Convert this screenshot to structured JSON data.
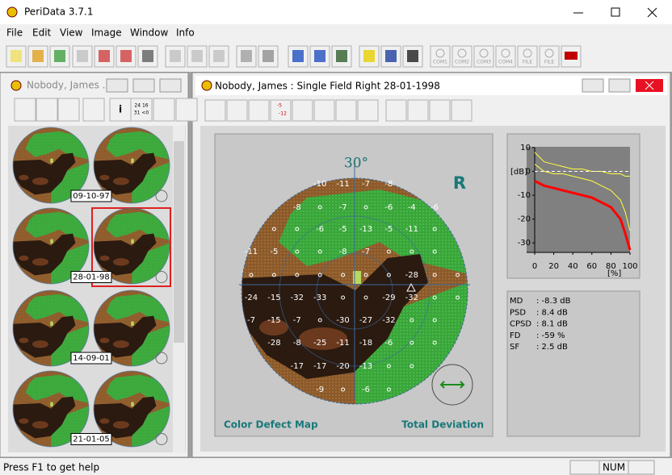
{
  "window": {
    "title": "PeriData 3.7.1",
    "menu": [
      "File",
      "Edit",
      "View",
      "Image",
      "Window",
      "Info"
    ],
    "toolbar_labels": [
      "COM1",
      "COM2",
      "COM3",
      "COM4",
      "FILE",
      "FILE"
    ]
  },
  "left_window": {
    "title": "Nobody, James ...",
    "toolbar_labels": [
      "i",
      "24 16",
      "31 <0"
    ],
    "dates": [
      "09-10-97",
      "28-01-98",
      "14-09-01",
      "21-01-05"
    ]
  },
  "main_window": {
    "title": "Nobody, James :  Single Field  Right  28-01-1998",
    "toolbar_labels": [
      "-5",
      "-12"
    ],
    "angle": "30°",
    "eye": "R",
    "map_label": "Color Defect Map",
    "map_type": "Total Deviation",
    "field": [
      [
        null,
        null,
        null,
        -10,
        -11,
        -7,
        -8,
        null,
        null,
        null
      ],
      [
        null,
        null,
        -8,
        null,
        -7,
        null,
        -6,
        -4,
        -6,
        null
      ],
      [
        null,
        null,
        null,
        -6,
        -5,
        -13,
        -5,
        -11,
        null,
        null
      ],
      [
        -11,
        -5,
        null,
        null,
        -8,
        -7,
        null,
        null,
        null,
        null
      ],
      [
        null,
        null,
        null,
        null,
        null,
        null,
        null,
        -28,
        null,
        null
      ],
      [
        -24,
        -15,
        -32,
        -33,
        null,
        null,
        -29,
        -32,
        null,
        null
      ],
      [
        -7,
        -15,
        -7,
        null,
        -30,
        -27,
        -32,
        null,
        null,
        null
      ],
      [
        null,
        -28,
        -8,
        -25,
        -11,
        -18,
        -6,
        null,
        null,
        null
      ],
      [
        null,
        null,
        -17,
        -17,
        -20,
        -13,
        null,
        null,
        null,
        null
      ],
      [
        null,
        null,
        null,
        -9,
        null,
        -6,
        null,
        null,
        null,
        null
      ]
    ],
    "stats": [
      {
        "label": "MD",
        "value": ": -8.3 dB"
      },
      {
        "label": "PSD",
        "value": ": 8.4 dB"
      },
      {
        "label": "CPSD",
        "value": ": 8.1 dB"
      },
      {
        "label": "FD",
        "value": ": -59 %"
      },
      {
        "label": "SF",
        "value": ": 2.5 dB"
      }
    ]
  },
  "chart_data": {
    "type": "line",
    "ylabel": "[dB]",
    "xlabel": "[%]",
    "x": [
      0,
      10,
      20,
      30,
      40,
      50,
      60,
      70,
      80,
      90,
      95,
      100
    ],
    "series": [
      {
        "color": "#ffff40",
        "values": [
          8,
          4,
          3,
          2,
          1,
          1,
          0,
          0,
          -1,
          -1,
          -2,
          -2
        ]
      },
      {
        "color": "#ffff40",
        "values": [
          3,
          0,
          -1,
          -1,
          -2,
          -3,
          -4,
          -6,
          -8,
          -12,
          -17,
          -25
        ]
      },
      {
        "color": "#ffffff",
        "dashed": true,
        "values": [
          0,
          0,
          0,
          0,
          0,
          0,
          0,
          0,
          0,
          0,
          0,
          0
        ]
      },
      {
        "color": "#ff0000",
        "values": [
          -4,
          -6,
          -7,
          -8,
          -9,
          -10,
          -11,
          -13,
          -15,
          -20,
          -26,
          -33
        ]
      }
    ],
    "xlim": [
      0,
      100
    ],
    "ylim": [
      -34,
      10
    ],
    "xticks": [
      0,
      20,
      40,
      60,
      80,
      100
    ],
    "yticks": [
      10,
      0,
      -10,
      -20,
      -30
    ],
    "background": "#808080"
  },
  "status": {
    "help": "Press F1 to get help",
    "num": "NUM"
  }
}
